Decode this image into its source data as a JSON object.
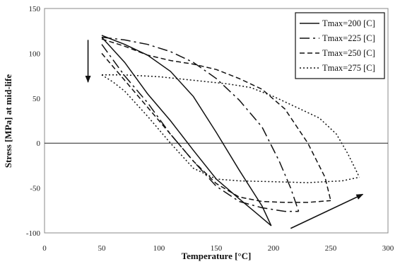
{
  "chart_data": {
    "type": "line",
    "title": "",
    "xlabel": "Temperature [°C]",
    "ylabel": "Stress [MPa] at mid-life",
    "xlim": [
      0,
      300
    ],
    "ylim": [
      -100,
      150
    ],
    "x_ticks": [
      "0",
      "50",
      "100",
      "150",
      "200",
      "250",
      "300"
    ],
    "y_ticks": [
      "150",
      "100",
      "50",
      "0",
      "-50",
      "-100"
    ],
    "grid": false,
    "legend_position": "top-right",
    "zero_line": true,
    "series": [
      {
        "name": "Tmax=200 [C]",
        "dash": "",
        "lower": [
          [
            50,
            118
          ],
          [
            70,
            90
          ],
          [
            90,
            55
          ],
          [
            110,
            25
          ],
          [
            130,
            -8
          ],
          [
            150,
            -40
          ],
          [
            170,
            -62
          ],
          [
            185,
            -78
          ],
          [
            198,
            -92
          ]
        ],
        "upper": [
          [
            50,
            120
          ],
          [
            70,
            110
          ],
          [
            90,
            98
          ],
          [
            110,
            80
          ],
          [
            130,
            52
          ],
          [
            150,
            12
          ],
          [
            170,
            -30
          ],
          [
            190,
            -70
          ],
          [
            198,
            -92
          ]
        ]
      },
      {
        "name": "Tmax=225 [C]",
        "dash": "14,5,3,5",
        "lower": [
          [
            50,
            110
          ],
          [
            70,
            75
          ],
          [
            90,
            45
          ],
          [
            110,
            10
          ],
          [
            130,
            -20
          ],
          [
            150,
            -48
          ],
          [
            170,
            -65
          ],
          [
            190,
            -72
          ],
          [
            210,
            -76
          ],
          [
            222,
            -76
          ]
        ],
        "upper": [
          [
            50,
            118
          ],
          [
            70,
            115
          ],
          [
            90,
            110
          ],
          [
            110,
            102
          ],
          [
            130,
            90
          ],
          [
            150,
            72
          ],
          [
            170,
            48
          ],
          [
            190,
            18
          ],
          [
            205,
            -20
          ],
          [
            215,
            -50
          ],
          [
            222,
            -76
          ]
        ]
      },
      {
        "name": "Tmax=250 [C]",
        "dash": "7,4",
        "lower": [
          [
            50,
            100
          ],
          [
            70,
            70
          ],
          [
            90,
            40
          ],
          [
            110,
            10
          ],
          [
            130,
            -20
          ],
          [
            150,
            -45
          ],
          [
            170,
            -60
          ],
          [
            190,
            -65
          ],
          [
            210,
            -66
          ],
          [
            230,
            -66
          ],
          [
            250,
            -64
          ]
        ],
        "upper": [
          [
            50,
            116
          ],
          [
            70,
            108
          ],
          [
            90,
            98
          ],
          [
            110,
            92
          ],
          [
            130,
            88
          ],
          [
            150,
            82
          ],
          [
            170,
            72
          ],
          [
            190,
            60
          ],
          [
            210,
            38
          ],
          [
            230,
            0
          ],
          [
            245,
            -38
          ],
          [
            250,
            -64
          ]
        ]
      },
      {
        "name": "Tmax=275 [C]",
        "dash": "2,3",
        "lower": [
          [
            50,
            76
          ],
          [
            60,
            68
          ],
          [
            70,
            58
          ],
          [
            90,
            30
          ],
          [
            110,
            0
          ],
          [
            130,
            -28
          ],
          [
            150,
            -40
          ],
          [
            170,
            -42
          ],
          [
            200,
            -43
          ],
          [
            230,
            -44
          ],
          [
            260,
            -42
          ],
          [
            275,
            -38
          ]
        ],
        "upper": [
          [
            50,
            76
          ],
          [
            70,
            76
          ],
          [
            100,
            74
          ],
          [
            130,
            70
          ],
          [
            160,
            66
          ],
          [
            180,
            62
          ],
          [
            200,
            52
          ],
          [
            220,
            40
          ],
          [
            240,
            28
          ],
          [
            255,
            10
          ],
          [
            265,
            -12
          ],
          [
            272,
            -30
          ],
          [
            275,
            -38
          ]
        ]
      }
    ],
    "annotations": [
      {
        "type": "arrow",
        "from": [
          38,
          115
        ],
        "to": [
          38,
          68
        ]
      },
      {
        "type": "arrow",
        "from": [
          215,
          -95
        ],
        "to": [
          278,
          -57
        ]
      }
    ]
  }
}
